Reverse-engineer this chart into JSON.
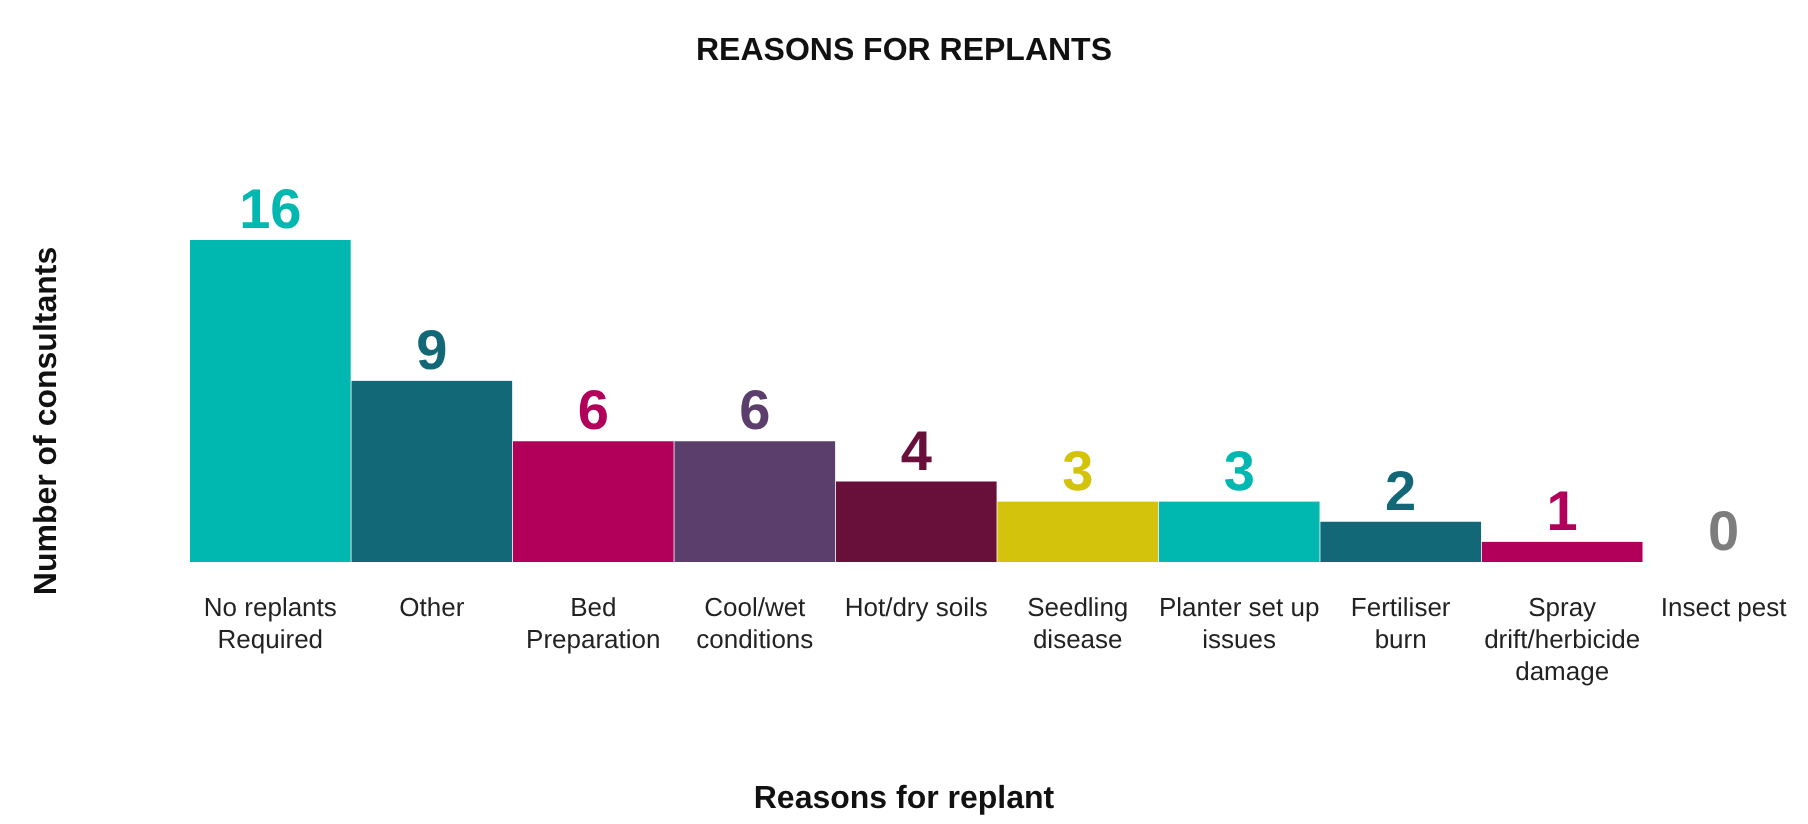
{
  "chart_data": {
    "type": "bar",
    "title": "REASONS FOR REPLANTS",
    "xlabel": "Reasons for replant",
    "ylabel": "Number of consultants",
    "categories": [
      "No replants Required",
      "Other",
      "Bed Preparation",
      "Cool/wet conditions",
      "Hot/dry soils",
      "Seedling disease",
      "Planter set up issues",
      "Fertiliser burn",
      "Spray drift/herbicide damage",
      "Insect pest"
    ],
    "values": [
      16,
      9,
      6,
      6,
      4,
      3,
      3,
      2,
      1,
      0
    ],
    "colors": [
      "#00b8b0",
      "#136878",
      "#b2005a",
      "#5b3e6b",
      "#680f3a",
      "#d4c30c",
      "#00b8b0",
      "#136878",
      "#b2005a",
      "#7d7d7d"
    ],
    "data_labels": true
  }
}
